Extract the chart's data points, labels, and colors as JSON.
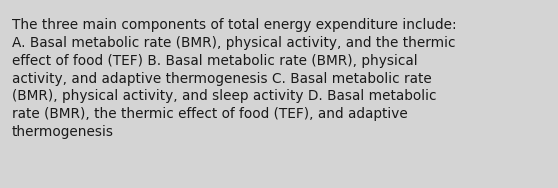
{
  "text": "The three main components of total energy expenditure include:\nA. Basal metabolic rate (BMR), physical activity, and the thermic\neffect of food (TEF) B. Basal metabolic rate (BMR), physical\nactivity, and adaptive thermogenesis C. Basal metabolic rate\n(BMR), physical activity, and sleep activity D. Basal metabolic\nrate (BMR), the thermic effect of food (TEF), and adaptive\nthermogenesis",
  "background_color": "#d4d4d4",
  "text_color": "#1a1a1a",
  "font_size": 9.8,
  "fig_width": 5.58,
  "fig_height": 1.88,
  "dpi": 100
}
